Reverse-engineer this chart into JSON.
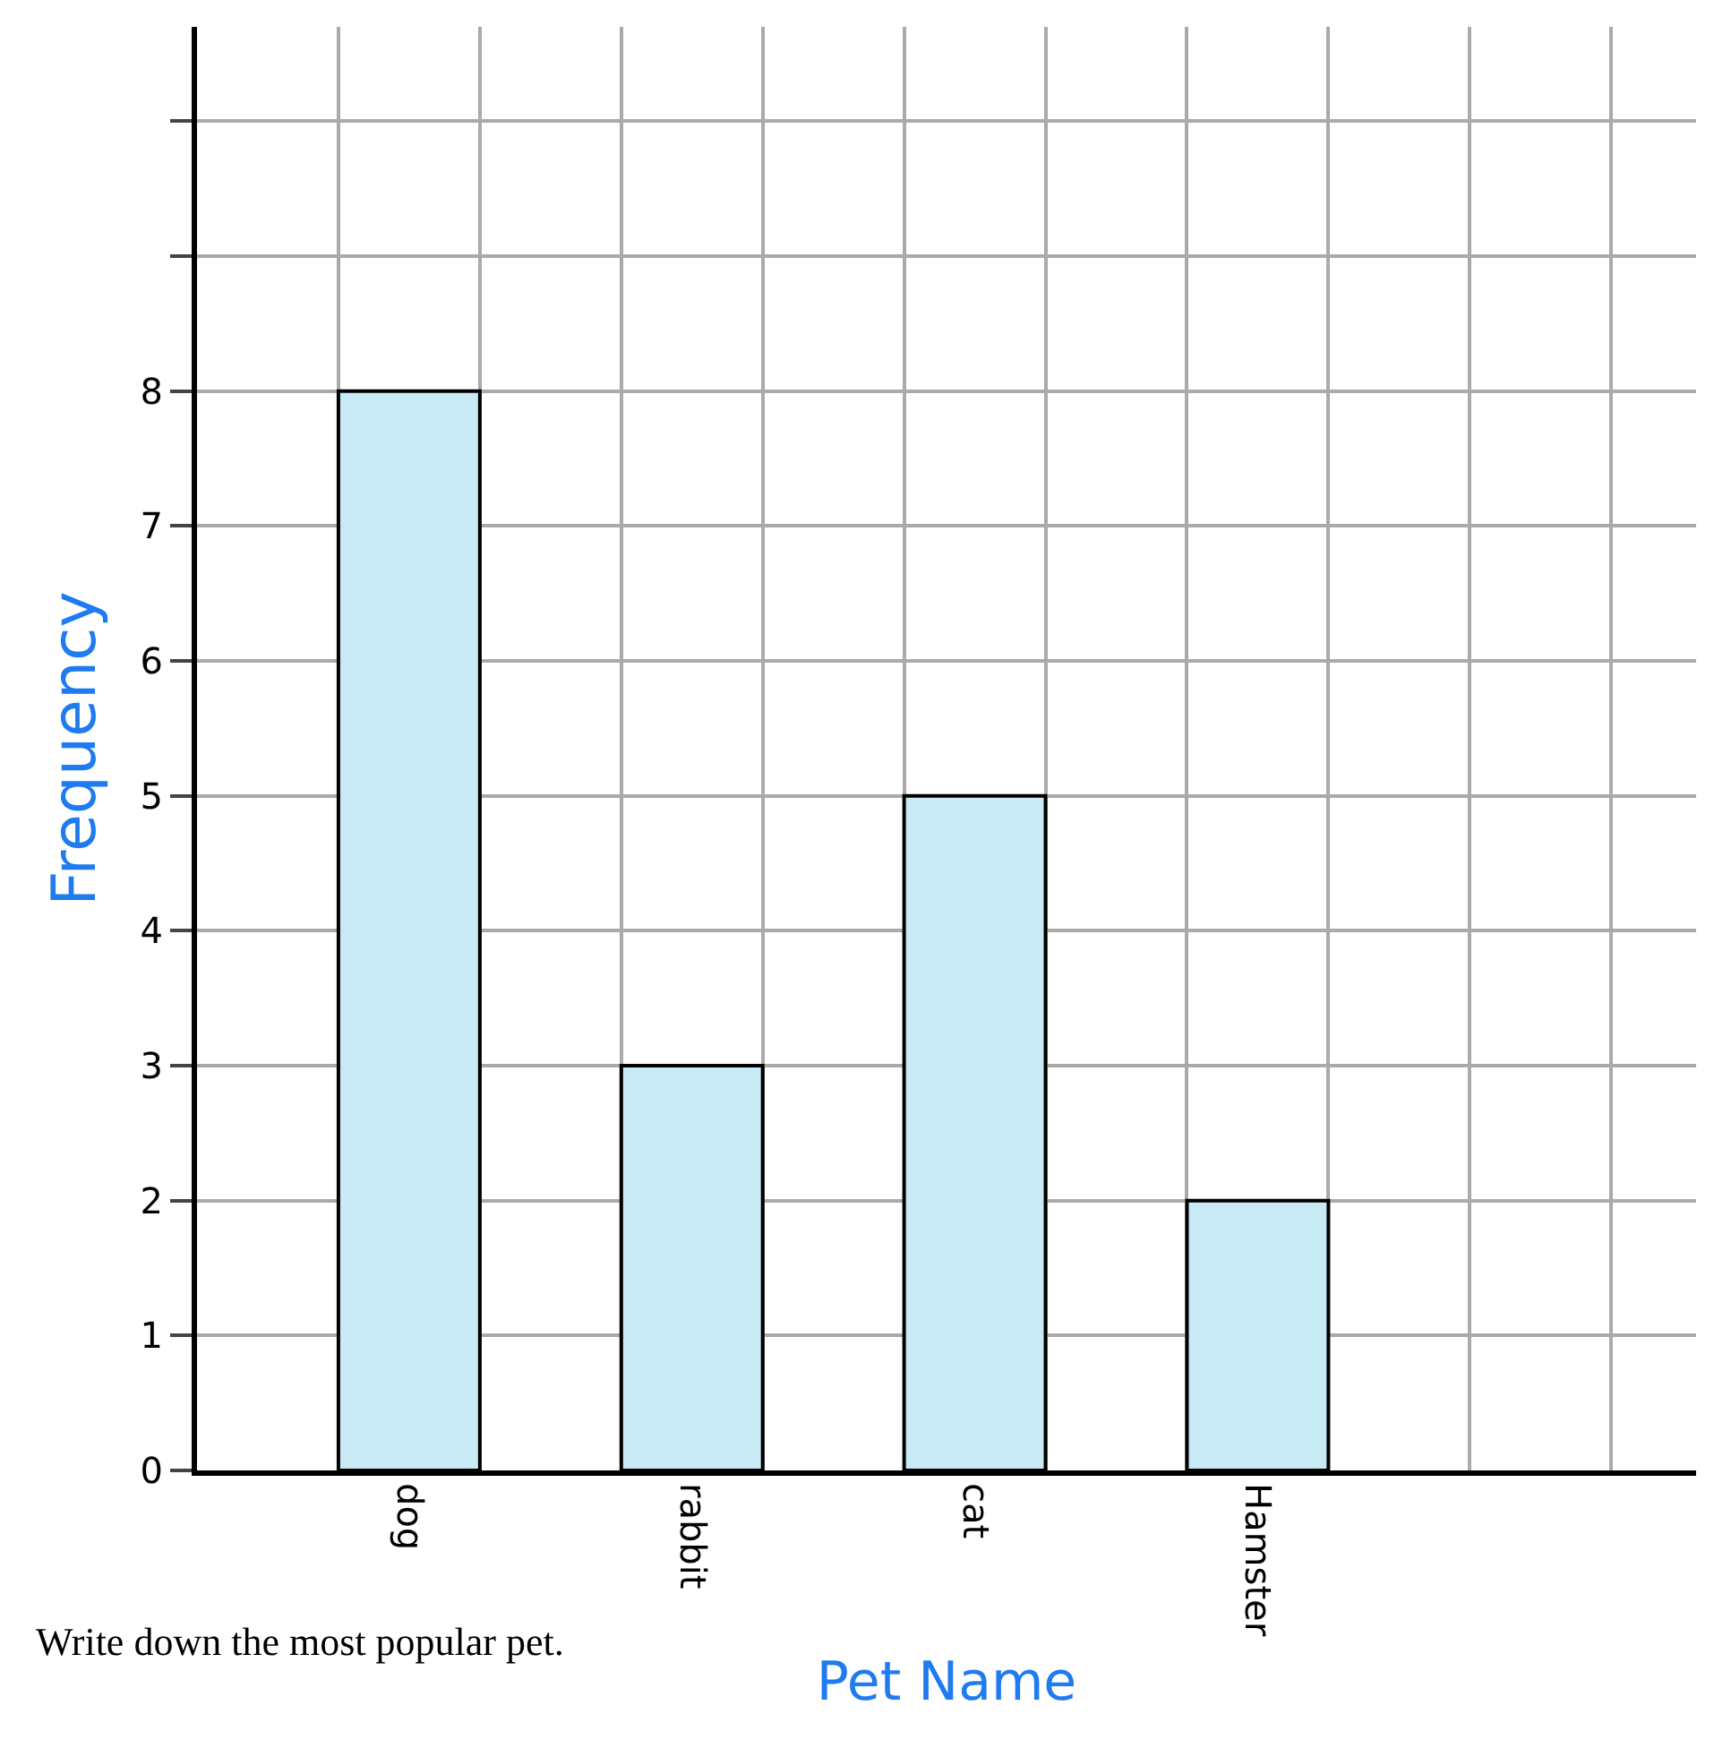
{
  "chart_data": {
    "type": "bar",
    "xlabel": "Pet Name",
    "ylabel": "Frequency",
    "categories": [
      null,
      "dog",
      null,
      "rabbit",
      null,
      "cat",
      null,
      "Hamster",
      null,
      null
    ],
    "values": [
      null,
      8,
      null,
      3,
      null,
      5,
      null,
      2,
      null,
      null
    ],
    "color": "#c8eaf5",
    "ylim": [
      0,
      10.7
    ],
    "yticks": [
      0,
      1,
      2,
      3,
      4,
      5,
      6,
      7,
      8,
      {
        "value": 9,
        "label": null
      },
      {
        "value": 10,
        "label": null
      }
    ],
    "grid": true,
    "annotations": [
      "Write down the most popular pet."
    ]
  }
}
